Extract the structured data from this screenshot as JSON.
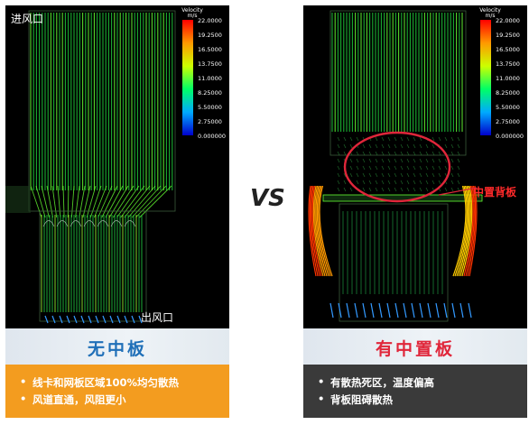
{
  "vs_label": "VS",
  "scale": {
    "title": "Velocity\nm/s",
    "ticks": [
      "22.0000",
      "19.2500",
      "16.5000",
      "13.7500",
      "11.0000",
      "8.25000",
      "5.50000",
      "2.75000",
      "0.000000"
    ]
  },
  "left_panel": {
    "inlet_label": "进风口",
    "outlet_label": "出风口",
    "title": "无中板",
    "bullets": [
      "线卡和网板区域100%均匀散热",
      "风道直通，风阻更小"
    ]
  },
  "right_panel": {
    "callout_label": "中置背板",
    "title": "有中置板",
    "bullets": [
      "有散热死区，温度偏高",
      "背板阻碍散热"
    ]
  },
  "colors": {
    "orange_band": "#f39c1f",
    "dark_band": "#3a3a3a",
    "left_title": "#1f6fb8",
    "right_title": "#e0263a",
    "callout_red": "#ff2a2a"
  }
}
